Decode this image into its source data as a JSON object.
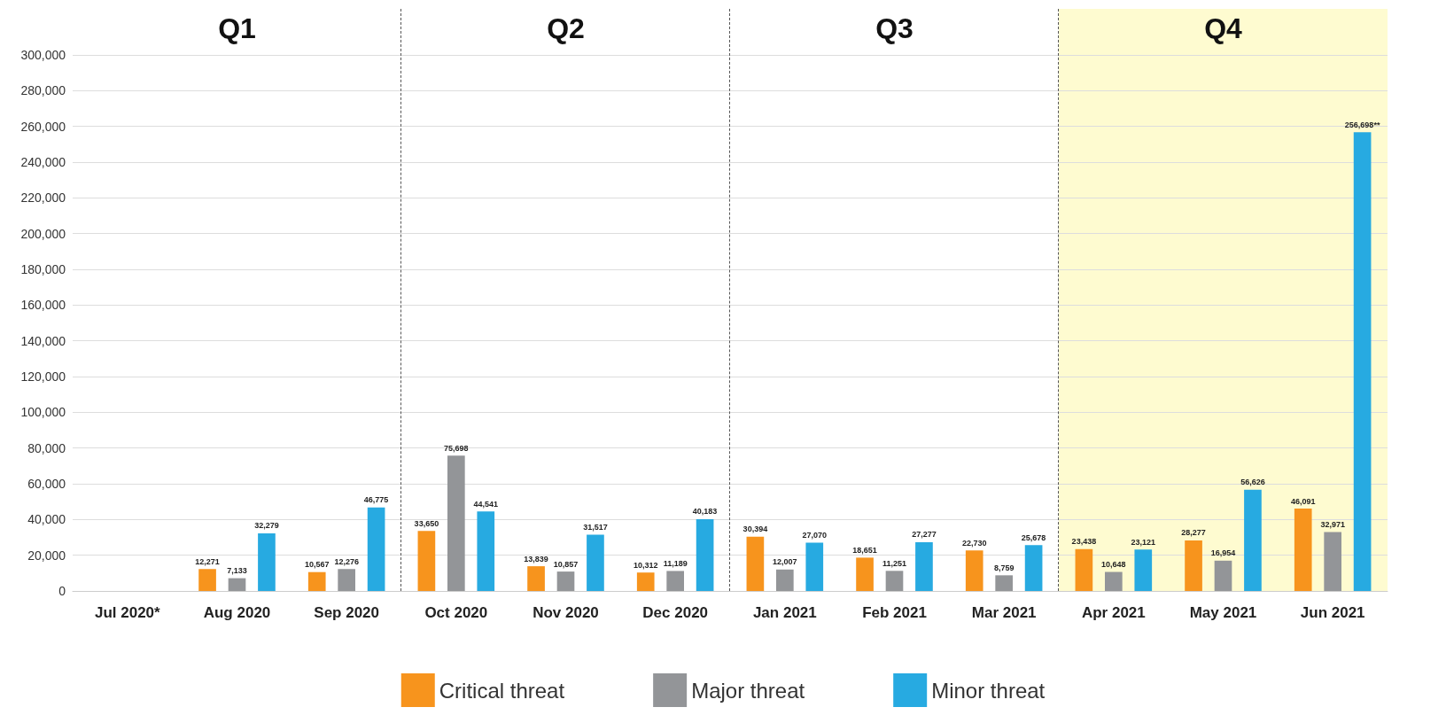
{
  "chart_data": {
    "type": "bar",
    "categories": [
      "Jul 2020*",
      "Aug 2020",
      "Sep 2020",
      "Oct 2020",
      "Nov 2020",
      "Dec 2020",
      "Jan 2021",
      "Feb 2021",
      "Mar 2021",
      "Apr 2021",
      "May 2021",
      "Jun 2021"
    ],
    "series": [
      {
        "name": "Critical threat",
        "color": "#f7941d",
        "values": [
          null,
          12271,
          10567,
          33650,
          13839,
          10312,
          30394,
          18651,
          22730,
          23438,
          28277,
          46091
        ],
        "value_labels": [
          null,
          "12,271",
          "10,567",
          "33,650",
          "13,839",
          "10,312",
          "30,394",
          "18,651",
          "22,730",
          "23,438",
          "28,277",
          "46,091"
        ]
      },
      {
        "name": "Major threat",
        "color": "#939598",
        "values": [
          null,
          7133,
          12276,
          75698,
          10857,
          11189,
          12007,
          11251,
          8759,
          10648,
          16954,
          32971
        ],
        "value_labels": [
          null,
          "7,133",
          "12,276",
          "75,698",
          "10,857",
          "11,189",
          "12,007",
          "11,251",
          "8,759",
          "10,648",
          "16,954",
          "32,971"
        ]
      },
      {
        "name": "Minor threat",
        "color": "#27aae1",
        "values": [
          null,
          32279,
          46775,
          44541,
          31517,
          40183,
          27070,
          27277,
          25678,
          23121,
          56626,
          256698
        ],
        "value_labels": [
          null,
          "32,279",
          "46,775",
          "44,541",
          "31,517",
          "40,183",
          "27,070",
          "27,277",
          "25,678",
          "23,121",
          "56,626",
          "256,698**"
        ]
      }
    ],
    "ylim": [
      0,
      300000
    ],
    "yticks": [
      0,
      {
        "value": 20000,
        "label": "20,000"
      },
      {
        "value": 40000,
        "label": "40,000"
      },
      {
        "value": 60000,
        "label": "60,000"
      },
      {
        "value": 80000,
        "label": "80,000"
      },
      {
        "value": 100000,
        "label": "100,000"
      },
      {
        "value": 120000,
        "label": "120,000"
      },
      {
        "value": 140000,
        "label": "140,000"
      },
      {
        "value": 160000,
        "label": "160,000"
      },
      {
        "value": 180000,
        "label": "180,000"
      },
      {
        "value": 200000,
        "label": "200,000"
      },
      {
        "value": 220000,
        "label": "220,000"
      },
      {
        "value": 240000,
        "label": "240,000"
      },
      {
        "value": 260000,
        "label": "260,000"
      },
      {
        "value": 280000,
        "label": "280,000"
      },
      {
        "value": 300000,
        "label": "300,000"
      }
    ],
    "annotations": [
      "Q1",
      "Q2",
      "Q3"
    ],
    "bands": [
      {
        "axis": "x",
        "from": "Apr 2021",
        "to": "Jun 2021",
        "label": "Q4",
        "color": "#fefbd0"
      }
    ],
    "grid": "y",
    "legend": "bottom"
  }
}
